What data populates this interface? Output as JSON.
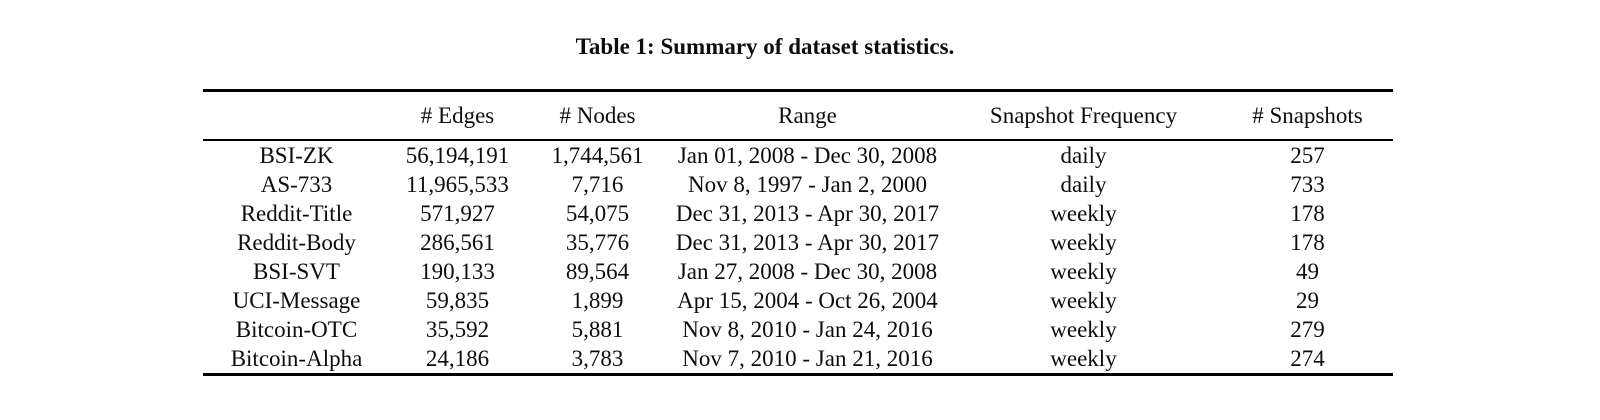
{
  "page": {
    "background_color": "#ffffff",
    "text_color": "#0d0d0d"
  },
  "caption": {
    "text": "Table 1: Summary of dataset statistics."
  },
  "table": {
    "header": [
      "",
      "# Edges",
      "# Nodes",
      "Range",
      "Snapshot Frequency",
      "# Snapshots"
    ],
    "rows": [
      [
        "BSI-ZK",
        "56,194,191",
        "1,744,561",
        "Jan 01, 2008 - Dec 30, 2008",
        "daily",
        "257"
      ],
      [
        "AS-733",
        "11,965,533",
        "7,716",
        "Nov 8, 1997 - Jan 2, 2000",
        "daily",
        "733"
      ],
      [
        "Reddit-Title",
        "571,927",
        "54,075",
        "Dec 31, 2013 - Apr 30, 2017",
        "weekly",
        "178"
      ],
      [
        "Reddit-Body",
        "286,561",
        "35,776",
        "Dec 31, 2013 - Apr 30, 2017",
        "weekly",
        "178"
      ],
      [
        "BSI-SVT",
        "190,133",
        "89,564",
        "Jan 27, 2008 - Dec 30, 2008",
        "weekly",
        "49"
      ],
      [
        "UCI-Message",
        "59,835",
        "1,899",
        "Apr 15, 2004 - Oct 26, 2004",
        "weekly",
        "29"
      ],
      [
        "Bitcoin-OTC",
        "35,592",
        "5,881",
        "Nov 8, 2010 - Jan 24, 2016",
        "weekly",
        "279"
      ],
      [
        "Bitcoin-Alpha",
        "24,186",
        "3,783",
        "Nov 7, 2010 - Jan 21, 2016",
        "weekly",
        "274"
      ]
    ]
  }
}
